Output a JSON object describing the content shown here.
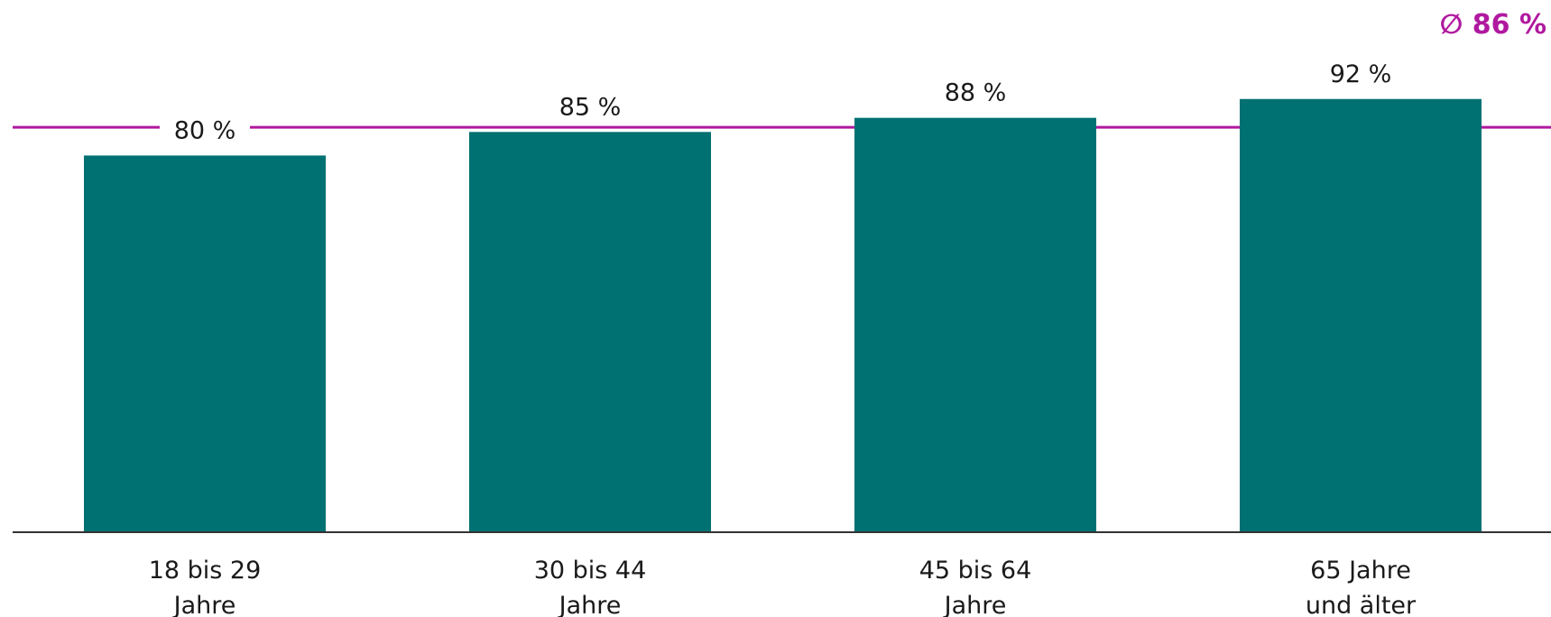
{
  "chart_data": {
    "type": "bar",
    "categories": [
      [
        "18 bis 29",
        "Jahre"
      ],
      [
        "30 bis 44",
        "Jahre"
      ],
      [
        "45 bis 64",
        "Jahre"
      ],
      [
        "65 Jahre",
        "und älter"
      ]
    ],
    "values": [
      80,
      85,
      88,
      92
    ],
    "value_labels": [
      "80 %",
      "85 %",
      "88 %",
      "92 %"
    ],
    "average": {
      "value": 86,
      "label": "∅ 86 %"
    },
    "ylim": [
      0,
      100
    ],
    "grid": false,
    "colors": {
      "bar": "#007173",
      "average_line": "#b0199f",
      "baseline": "#333333"
    }
  }
}
